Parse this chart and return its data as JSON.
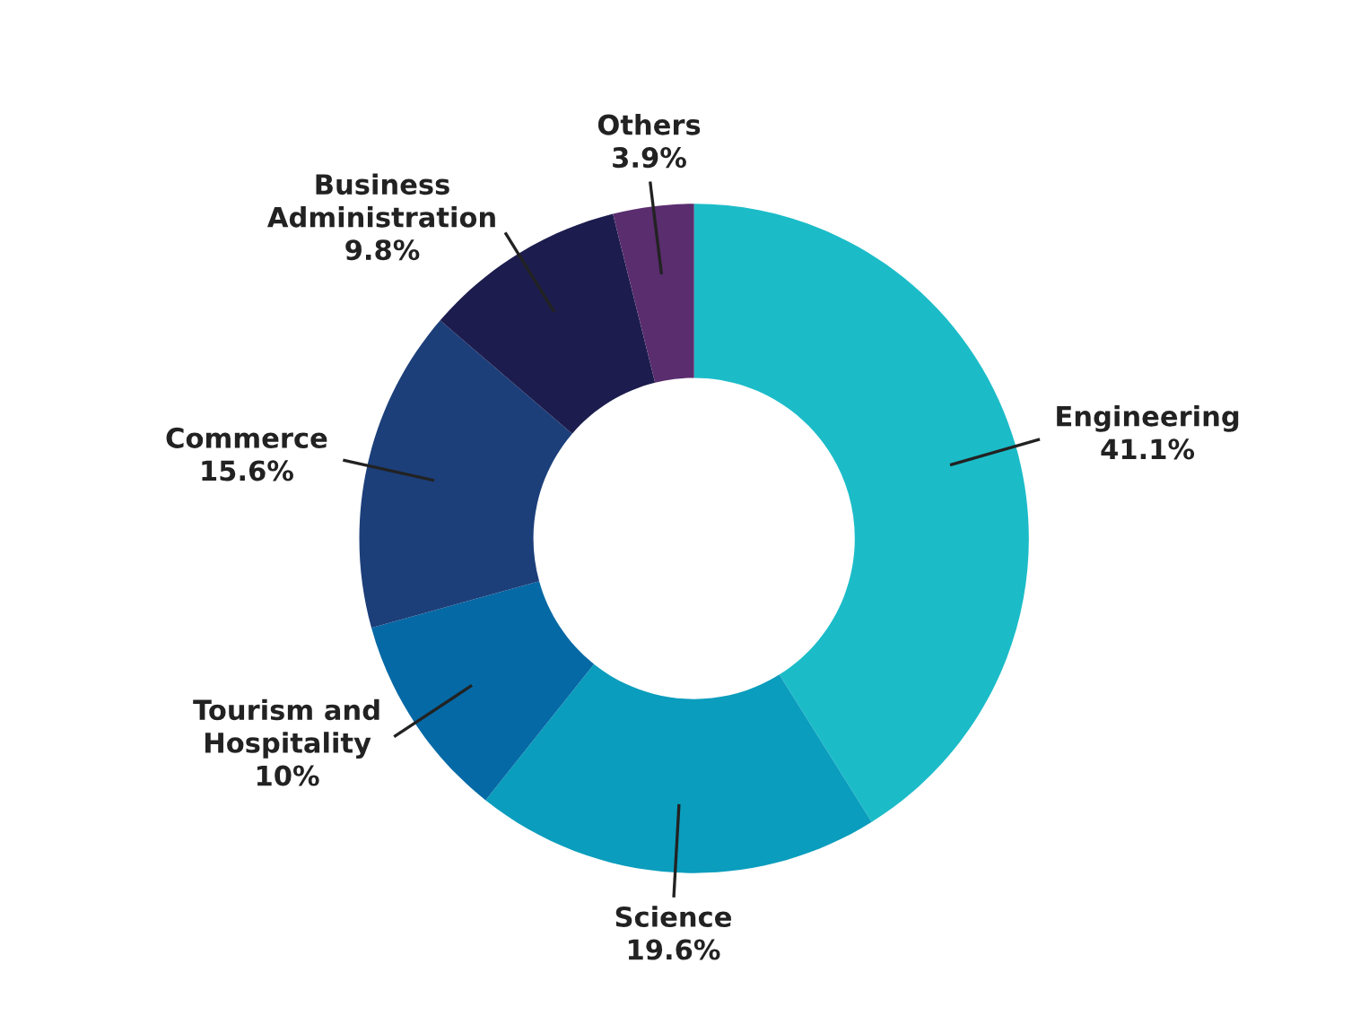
{
  "chart_data": {
    "type": "donut",
    "categories": [
      "Engineering",
      "Science",
      "Tourism and Hospitality",
      "Commerce",
      "Business Administration",
      "Others"
    ],
    "values": [
      41.1,
      19.6,
      10,
      15.6,
      9.8,
      3.9
    ],
    "colors": [
      "#1bbcc8",
      "#0a9dbd",
      "#0569a5",
      "#1c3f7a",
      "#1c1c4e",
      "#5a2d6e"
    ],
    "value_labels": [
      "41.1%",
      "19.6%",
      "10%",
      "15.6%",
      "9.8%",
      "3.9%"
    ]
  }
}
